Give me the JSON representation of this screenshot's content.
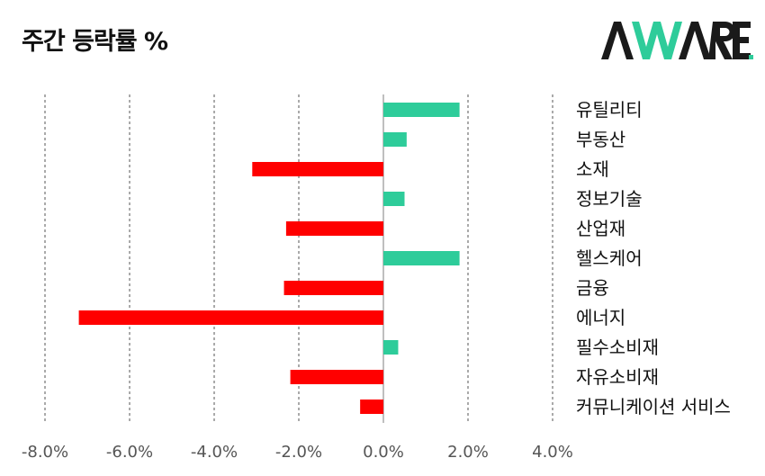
{
  "header": {
    "title": "주간 등락률 %",
    "logo_text": "AWARE."
  },
  "colors": {
    "positive": "#2ECC9A",
    "negative": "#FF0000",
    "grid": "#555555",
    "logo_dark": "#1a1a1a",
    "logo_accent": "#2ECC9A"
  },
  "chart_data": {
    "type": "bar",
    "orientation": "horizontal",
    "title": "주간 등락률 %",
    "categories": [
      "유틸리티",
      "부동산",
      "소재",
      "정보기술",
      "산업재",
      "헬스케어",
      "금융",
      "에너지",
      "필수소비재",
      "자유소비재",
      "커뮤니케이션 서비스"
    ],
    "values": [
      1.8,
      0.55,
      -3.1,
      0.5,
      -2.3,
      1.8,
      -2.35,
      -7.2,
      0.35,
      -2.2,
      -0.55
    ],
    "xlim": [
      -8.0,
      4.0
    ],
    "xticks": [
      -8.0,
      -6.0,
      -4.0,
      -2.0,
      0.0,
      2.0,
      4.0
    ],
    "tick_labels": [
      "-8.0%",
      "-6.0%",
      "-4.0%",
      "-2.0%",
      "0.0%",
      "2.0%",
      "4.0%"
    ],
    "grid": "vertical dashed",
    "category_labels_position": "right"
  }
}
